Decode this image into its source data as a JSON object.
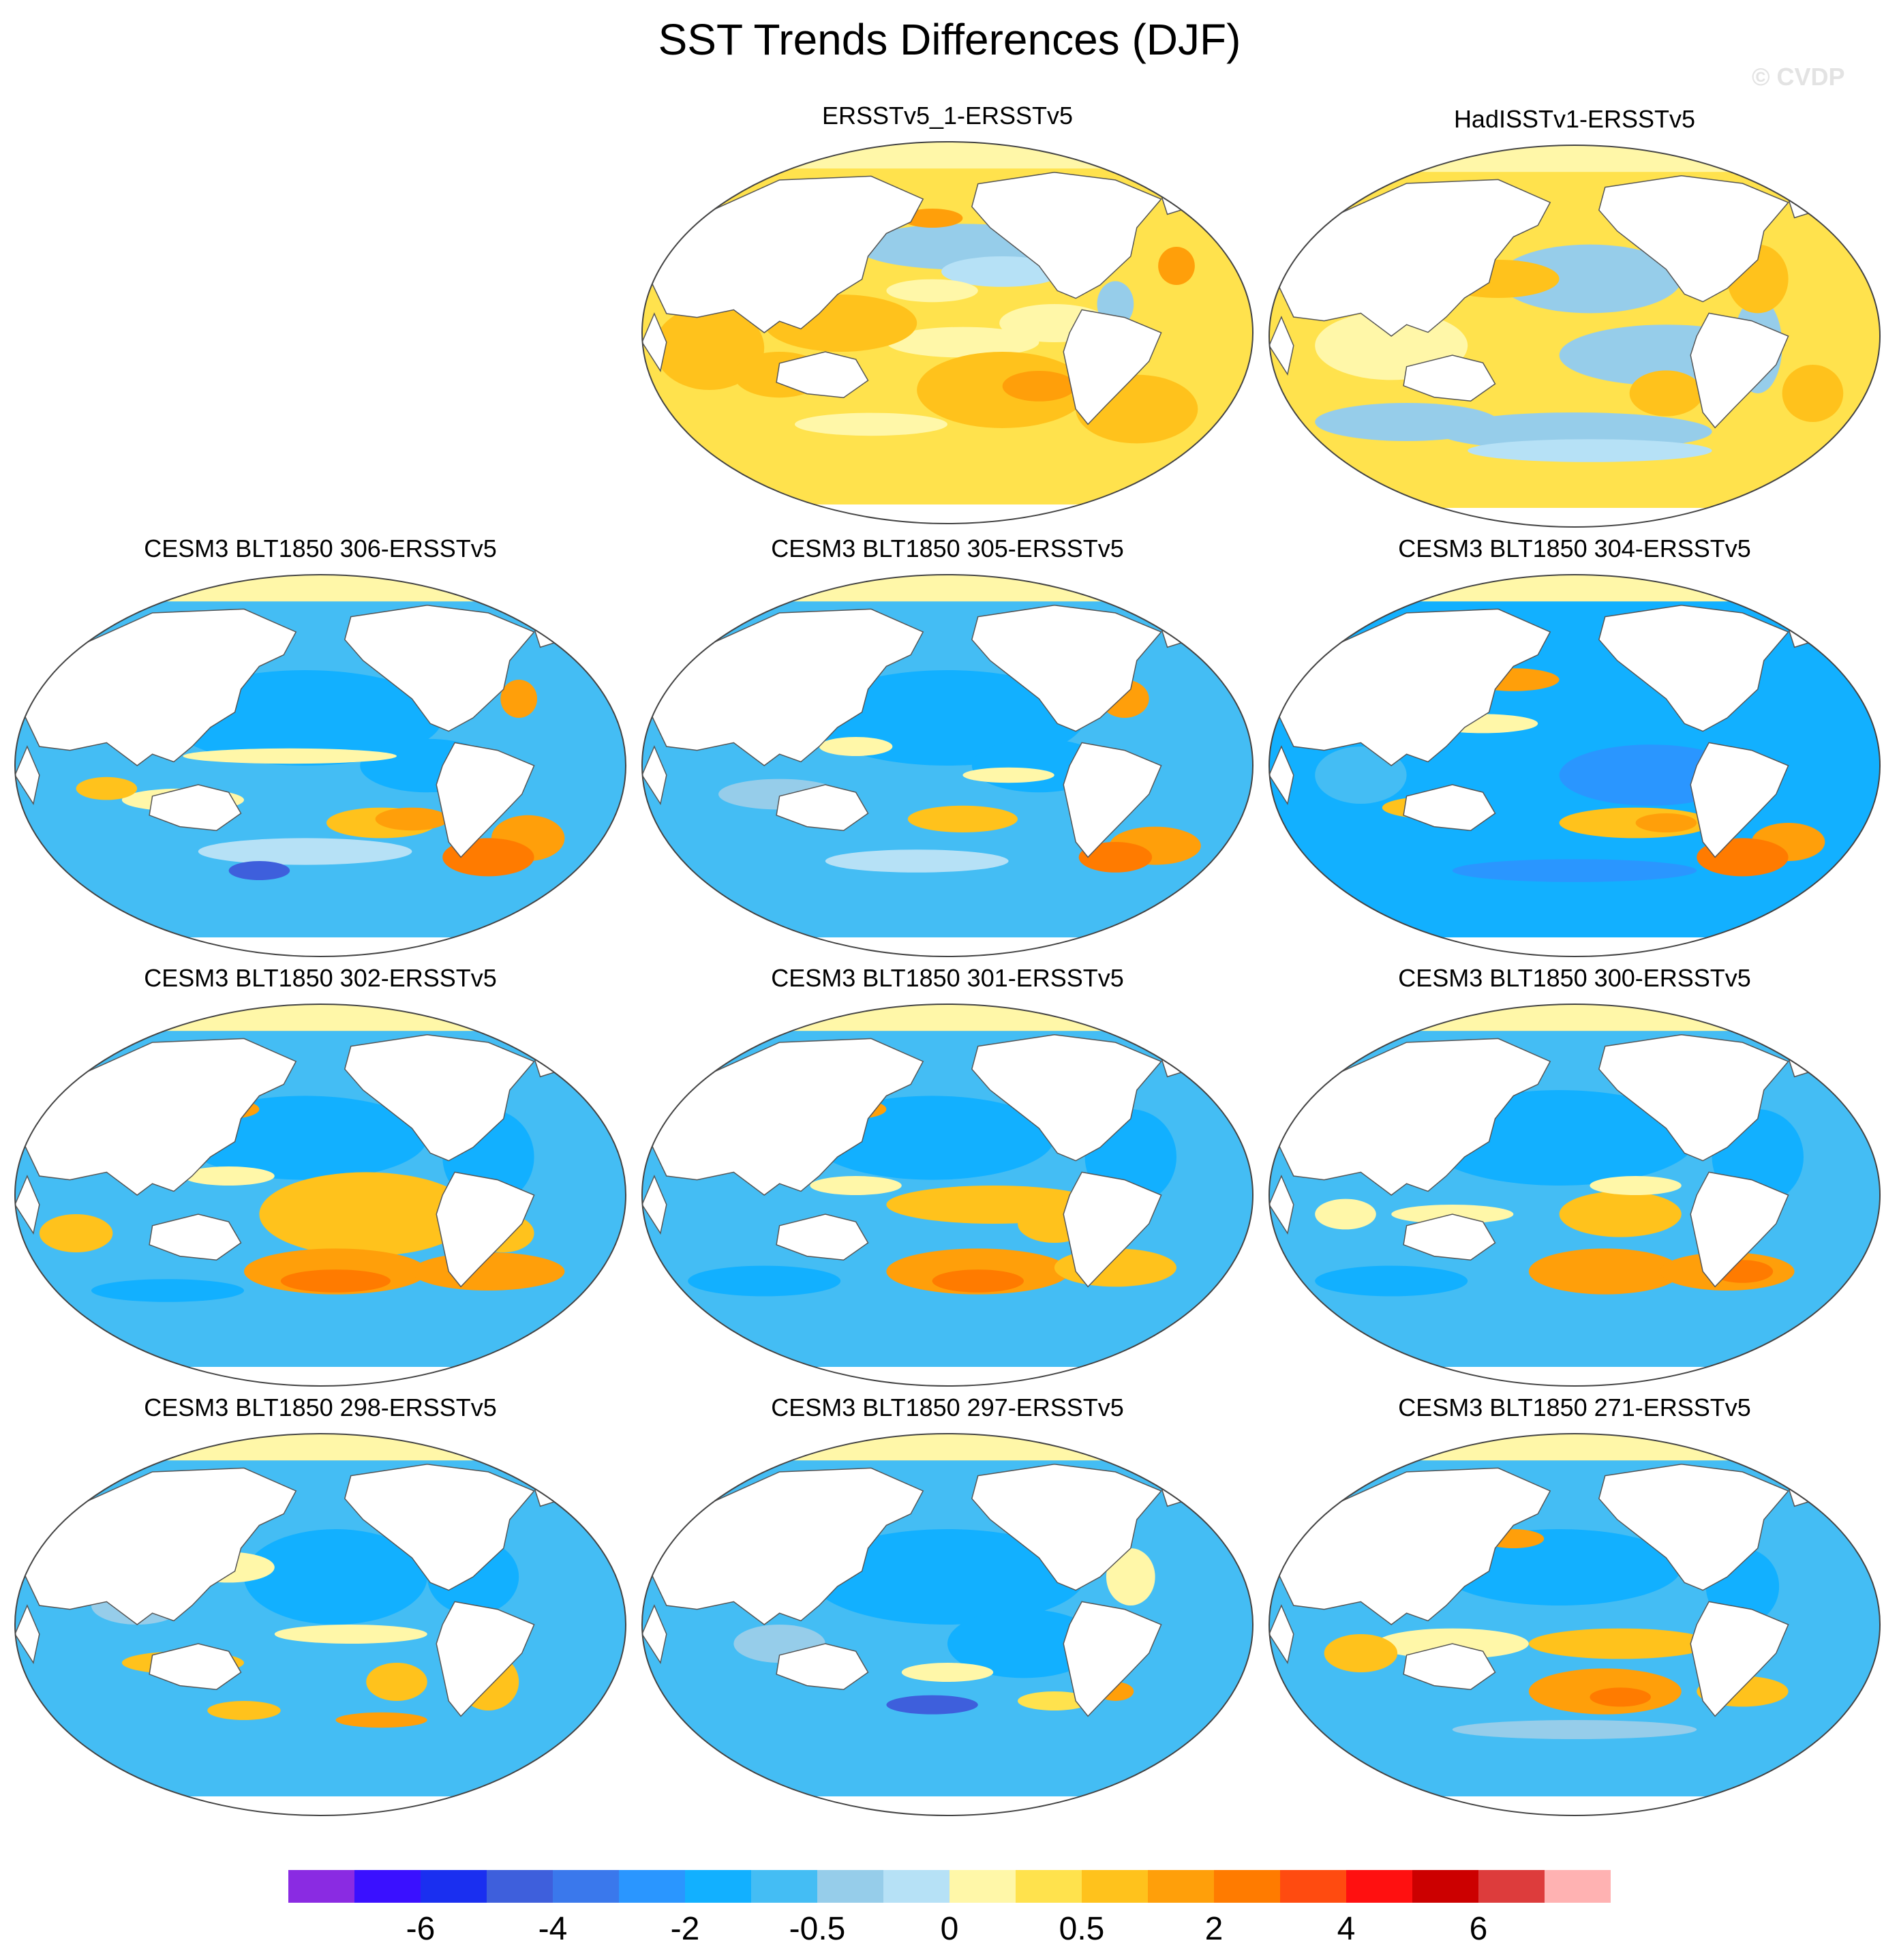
{
  "title": "SST Trends Differences (DJF)",
  "watermark": "© CVDP",
  "panels": [
    {
      "title": "ERSSTv5_1-ERSSTv5",
      "pattern": "obs1"
    },
    {
      "title": "HadISSTv1-ERSSTv5",
      "pattern": "obs2"
    },
    {
      "title": "CESM3 BLT1850 306-ERSSTv5",
      "pattern": "m306"
    },
    {
      "title": "CESM3 BLT1850 305-ERSSTv5",
      "pattern": "m305"
    },
    {
      "title": "CESM3 BLT1850 304-ERSSTv5",
      "pattern": "m304"
    },
    {
      "title": "CESM3 BLT1850 302-ERSSTv5",
      "pattern": "m302"
    },
    {
      "title": "CESM3 BLT1850 301-ERSSTv5",
      "pattern": "m301"
    },
    {
      "title": "CESM3 BLT1850 300-ERSSTv5",
      "pattern": "m300"
    },
    {
      "title": "CESM3 BLT1850 298-ERSSTv5",
      "pattern": "m298"
    },
    {
      "title": "CESM3 BLT1850 297-ERSSTv5",
      "pattern": "m297"
    },
    {
      "title": "CESM3 BLT1850 271-ERSSTv5",
      "pattern": "m271"
    }
  ],
  "colorbar": {
    "colors": [
      "#8a2be2",
      "#3a10ff",
      "#1a2ff0",
      "#3e5fdc",
      "#3a78ec",
      "#2a96ff",
      "#12b0ff",
      "#44bdf4",
      "#96cdea",
      "#b6e1f6",
      "#fff7a8",
      "#ffe24d",
      "#ffc21c",
      "#ff9f0a",
      "#ff7b00",
      "#ff4b10",
      "#ff1010",
      "#cc0000",
      "#dd3c3c",
      "#ffb2b2"
    ],
    "labels": [
      "-6",
      "-4",
      "-2",
      "-0.5",
      "0",
      "0.5",
      "2",
      "4",
      "6"
    ]
  }
}
